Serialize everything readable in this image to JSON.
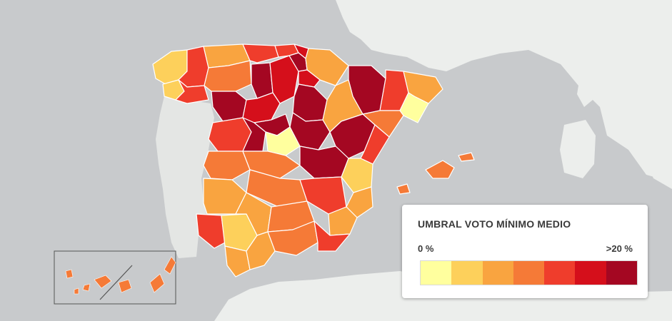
{
  "legend": {
    "title": "UMBRAL VOTO MÍNIMO MEDIO",
    "min_label": "0 %",
    "max_label": ">20 %",
    "scale_colors": [
      "#ffff9e",
      "#fdd05b",
      "#f9a440",
      "#f57a37",
      "#ef3d2c",
      "#d50f1b",
      "#a40722"
    ]
  },
  "colors": {
    "sea": "#c8cacc",
    "land_other": "#eceeec",
    "portugal": "#e4e6e4",
    "border": "#ffffff"
  }
}
